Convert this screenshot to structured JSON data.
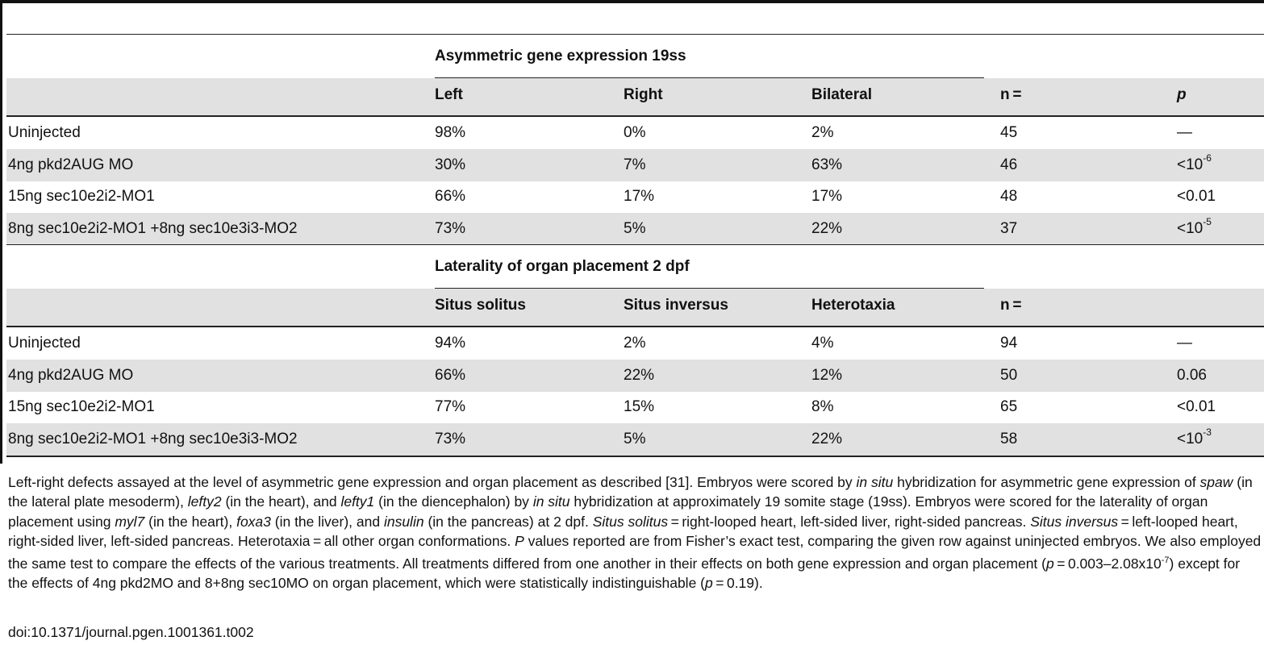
{
  "section1": {
    "title": "Asymmetric gene expression 19ss",
    "headers": [
      "Left",
      "Right",
      "Bilateral",
      "n =",
      "p"
    ],
    "rows": [
      {
        "label": "Uninjected",
        "c1": "98%",
        "c2": "0%",
        "c3": "2%",
        "n": "45",
        "p": "—",
        "p_exp": ""
      },
      {
        "label": "4ng pkd2AUG MO",
        "c1": "30%",
        "c2": "7%",
        "c3": "63%",
        "n": "46",
        "p": "<10",
        "p_exp": "-6"
      },
      {
        "label": "15ng sec10e2i2-MO1",
        "c1": "66%",
        "c2": "17%",
        "c3": "17%",
        "n": "48",
        "p": "<0.01",
        "p_exp": ""
      },
      {
        "label": "8ng sec10e2i2-MO1 +8ng sec10e3i3-MO2",
        "c1": "73%",
        "c2": "5%",
        "c3": "22%",
        "n": "37",
        "p": "<10",
        "p_exp": "-5"
      }
    ]
  },
  "section2": {
    "title": "Laterality of organ placement 2 dpf",
    "headers": [
      "Situs solitus",
      "Situs inversus",
      "Heterotaxia",
      "n ="
    ],
    "rows": [
      {
        "label": "Uninjected",
        "c1": "94%",
        "c2": "2%",
        "c3": "4%",
        "n": "94",
        "p": "—",
        "p_exp": ""
      },
      {
        "label": "4ng pkd2AUG MO",
        "c1": "66%",
        "c2": "22%",
        "c3": "12%",
        "n": "50",
        "p": "0.06",
        "p_exp": ""
      },
      {
        "label": "15ng sec10e2i2-MO1",
        "c1": "77%",
        "c2": "15%",
        "c3": "8%",
        "n": "65",
        "p": "<0.01",
        "p_exp": ""
      },
      {
        "label": "8ng sec10e2i2-MO1 +8ng sec10e3i3-MO2",
        "c1": "73%",
        "c2": "5%",
        "c3": "22%",
        "n": "58",
        "p": "<10",
        "p_exp": "-3"
      }
    ]
  },
  "caption": {
    "s01": "Left-right defects assayed at the level of asymmetric gene expression and organ placement as described [31]. Embryos were scored by ",
    "i01": "in situ",
    "s02": " hybridization for asymmetric gene expression of ",
    "i02": "spaw",
    "s03": " (in the lateral plate mesoderm), ",
    "i03": "lefty2",
    "s04": " (in the heart), and ",
    "i04": "lefty1",
    "s05": " (in the diencephalon) by ",
    "i05": "in situ",
    "s06": " hybridization at approximately 19 somite stage (19ss). Embryos were scored for the laterality of organ placement using ",
    "i06": "myl7",
    "s07": " (in the heart), ",
    "i07": "foxa3",
    "s08": " (in the liver), and ",
    "i08": "insulin",
    "s09": " (in the pancreas) at 2 dpf. ",
    "i09": "Situs solitus",
    "s10": " = right-looped heart, left-sided liver, right-sided pancreas. ",
    "i10": "Situs inversus",
    "s11": " = left-looped heart, right-sided liver, left-sided pancreas. Heterotaxia = all other organ conformations. ",
    "i11": "P",
    "s12": " values reported are from Fisher’s exact test, comparing the given row against uninjected embryos. We also employed the same test to compare the effects of the various treatments. All treatments differed from one another in their effects on both gene expression and organ placement (",
    "i12": "p",
    "s13": " = 0.003–2.08x10",
    "sup1": "-7",
    "s14": ") except for the effects of 4ng pkd2MO and 8+8ng sec10MO on organ placement, which were statistically indistinguishable (",
    "i13": "p",
    "s15": " = 0.19)."
  },
  "doi": "doi:10.1371/journal.pgen.1001361.t002"
}
